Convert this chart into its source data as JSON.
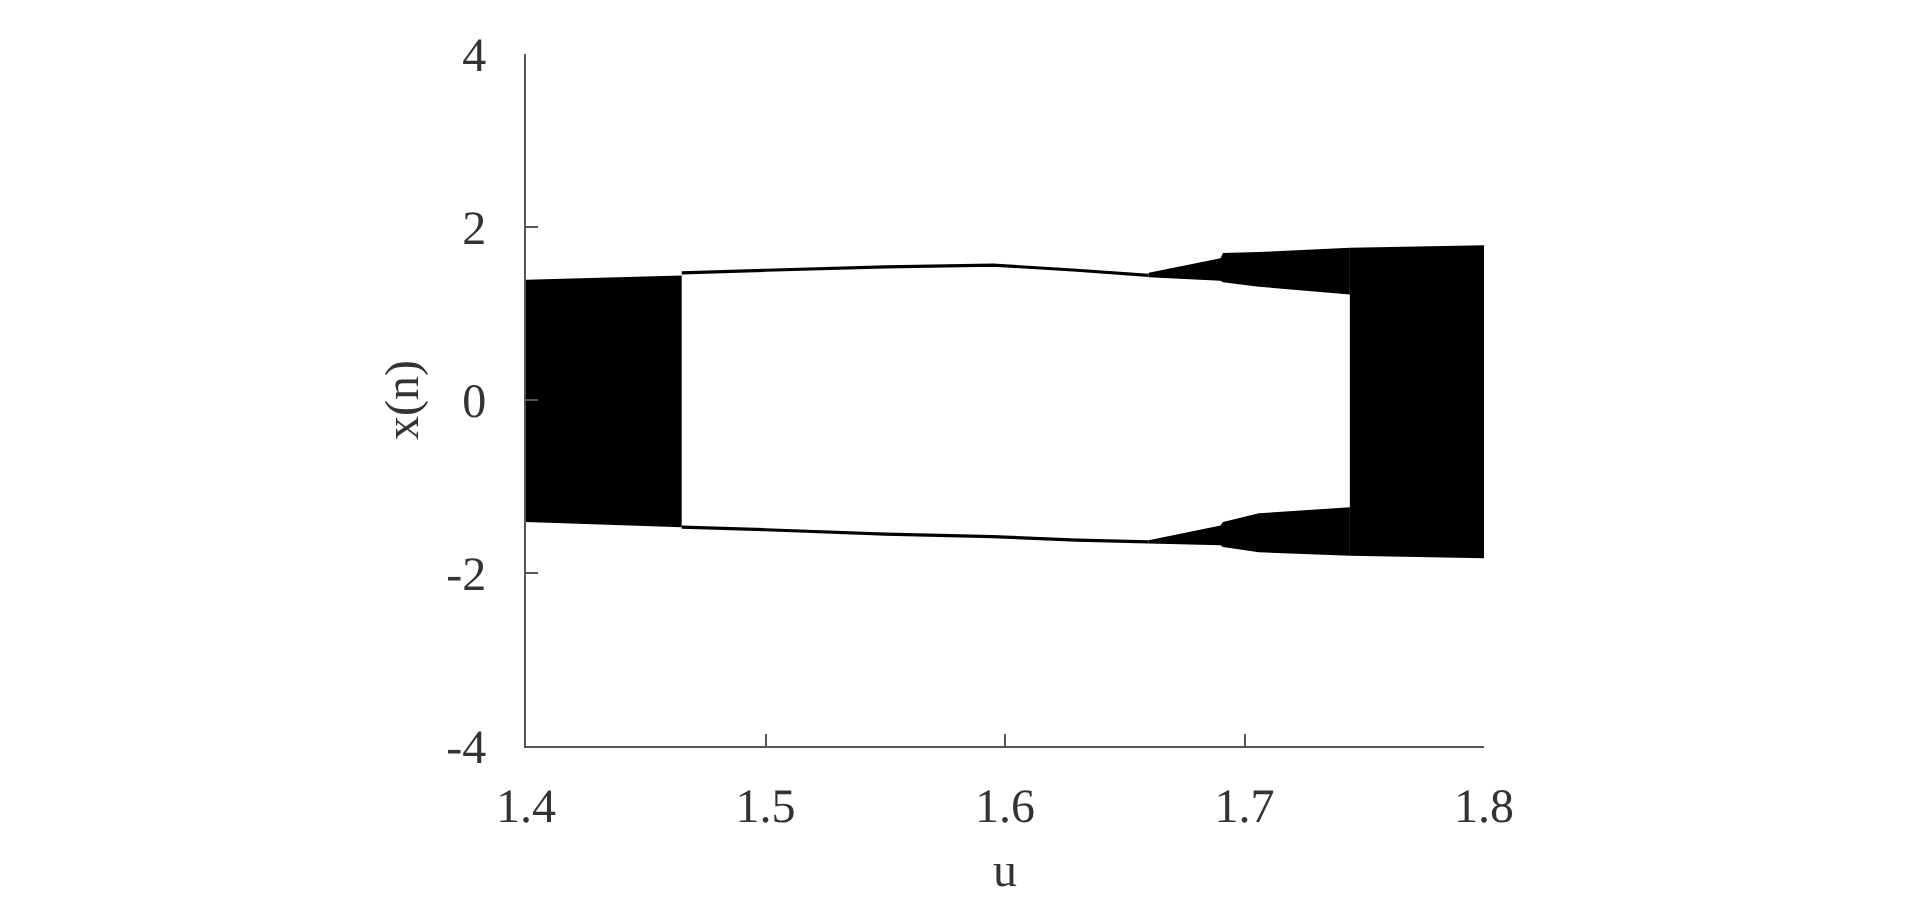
{
  "chart_data": {
    "type": "line",
    "xlabel": "u",
    "ylabel": "x(n)",
    "xlim": [
      1.4,
      1.8
    ],
    "xticks": [
      1.4,
      1.5,
      1.6,
      1.7,
      1.8
    ],
    "ylim": [
      -4,
      4
    ],
    "yticks": [
      -4,
      -2,
      0,
      2,
      4
    ],
    "series": [
      {
        "type": "area",
        "color": "#000000",
        "x": [
          1.4,
          1.465
        ],
        "values": [
          1.39,
          1.44
        ]
      },
      {
        "type": "area",
        "color": "#000000",
        "x": [
          1.4,
          1.465
        ],
        "values": [
          -1.41,
          -1.47
        ]
      },
      {
        "color": "#000000",
        "x": [
          1.465,
          1.5,
          1.55,
          1.595,
          1.63,
          1.66,
          1.69,
          1.691,
          1.706,
          1.744
        ],
        "values": [
          1.47,
          1.5,
          1.54,
          1.56,
          1.5,
          1.44,
          null,
          null,
          null,
          null
        ],
        "lower": [
          null,
          null,
          null,
          null,
          null,
          1.42,
          1.38,
          1.36,
          1.31,
          1.22
        ],
        "upper": [
          null,
          null,
          null,
          null,
          null,
          1.47,
          1.64,
          1.7,
          1.71,
          1.76
        ]
      },
      {
        "color": "#000000",
        "x": [
          1.465,
          1.5,
          1.55,
          1.595,
          1.63,
          1.66,
          1.69,
          1.691,
          1.706,
          1.744
        ],
        "values": [
          -1.47,
          -1.5,
          -1.55,
          -1.58,
          -1.62,
          -1.64,
          null,
          null,
          null,
          null
        ],
        "lower": [
          null,
          null,
          null,
          null,
          null,
          -1.66,
          -1.68,
          -1.7,
          -1.76,
          -1.8
        ],
        "upper": [
          null,
          null,
          null,
          null,
          null,
          -1.62,
          -1.45,
          -1.41,
          -1.31,
          -1.24
        ]
      },
      {
        "type": "area",
        "color": "#000000",
        "x": [
          1.744,
          1.8
        ],
        "values": [
          1.76,
          1.79
        ]
      },
      {
        "type": "area",
        "color": "#000000",
        "x": [
          1.744,
          1.8
        ],
        "values": [
          -1.8,
          -1.83
        ]
      }
    ]
  }
}
